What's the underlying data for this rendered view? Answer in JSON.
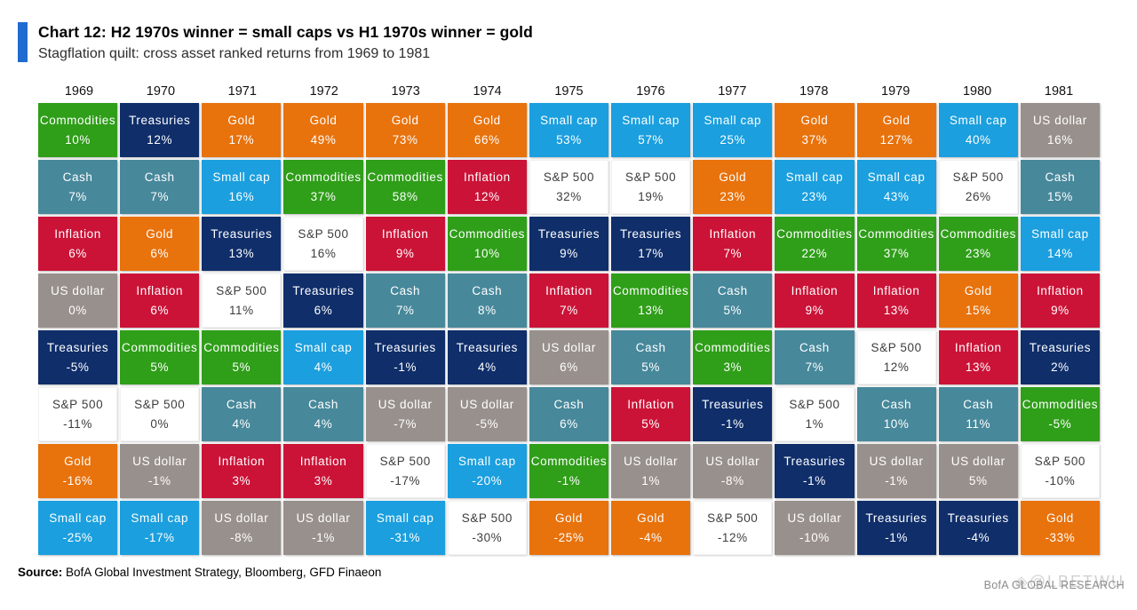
{
  "header": {
    "title": "Chart 12: H2 1970s winner = small caps vs H1 1970s winner = gold",
    "subtitle": "Stagflation quilt: cross asset ranked returns from 1969 to 1981",
    "accent_color": "#1f6bd0"
  },
  "source": {
    "label": "Source:",
    "text": " BofA Global Investment Strategy, Bloomberg, GFD Finaeon"
  },
  "watermark": {
    "brand": "BofA GLOBAL RESEARCH",
    "overlay": "◈@LBETWU"
  },
  "asset_colors": {
    "Commodities": {
      "bg": "#2f9e19",
      "fg": "#ffffff"
    },
    "Treasuries": {
      "bg": "#0f2e6a",
      "fg": "#ffffff"
    },
    "Gold": {
      "bg": "#e8720c",
      "fg": "#ffffff"
    },
    "Small cap": {
      "bg": "#1b9fde",
      "fg": "#ffffff"
    },
    "Cash": {
      "bg": "#47889b",
      "fg": "#ffffff"
    },
    "Inflation": {
      "bg": "#cb1337",
      "fg": "#ffffff"
    },
    "US dollar": {
      "bg": "#98908c",
      "fg": "#ffffff"
    },
    "S&P 500": {
      "bg": "#ffffff",
      "fg": "#3d3d3d"
    }
  },
  "chart_data": {
    "type": "table",
    "subtype": "ranked-return-quilt",
    "title": "Chart 12: H2 1970s winner = small caps vs H1 1970s winner = gold",
    "subtitle": "Stagflation quilt: cross asset ranked returns from 1969 to 1981",
    "rank_rows": 8,
    "years": [
      "1969",
      "1970",
      "1971",
      "1972",
      "1973",
      "1974",
      "1975",
      "1976",
      "1977",
      "1978",
      "1979",
      "1980",
      "1981"
    ],
    "columns": [
      {
        "year": "1969",
        "cells": [
          {
            "asset": "Commodities",
            "value": "10%"
          },
          {
            "asset": "Cash",
            "value": "7%"
          },
          {
            "asset": "Inflation",
            "value": "6%"
          },
          {
            "asset": "US dollar",
            "value": "0%"
          },
          {
            "asset": "Treasuries",
            "value": "-5%"
          },
          {
            "asset": "S&P 500",
            "value": "-11%"
          },
          {
            "asset": "Gold",
            "value": "-16%"
          },
          {
            "asset": "Small cap",
            "value": "-25%"
          }
        ]
      },
      {
        "year": "1970",
        "cells": [
          {
            "asset": "Treasuries",
            "value": "12%"
          },
          {
            "asset": "Cash",
            "value": "7%"
          },
          {
            "asset": "Gold",
            "value": "6%"
          },
          {
            "asset": "Inflation",
            "value": "6%"
          },
          {
            "asset": "Commodities",
            "value": "5%"
          },
          {
            "asset": "S&P 500",
            "value": "0%"
          },
          {
            "asset": "US dollar",
            "value": "-1%"
          },
          {
            "asset": "Small cap",
            "value": "-17%"
          }
        ]
      },
      {
        "year": "1971",
        "cells": [
          {
            "asset": "Gold",
            "value": "17%"
          },
          {
            "asset": "Small cap",
            "value": "16%"
          },
          {
            "asset": "Treasuries",
            "value": "13%"
          },
          {
            "asset": "S&P 500",
            "value": "11%"
          },
          {
            "asset": "Commodities",
            "value": "5%"
          },
          {
            "asset": "Cash",
            "value": "4%"
          },
          {
            "asset": "Inflation",
            "value": "3%"
          },
          {
            "asset": "US dollar",
            "value": "-8%"
          }
        ]
      },
      {
        "year": "1972",
        "cells": [
          {
            "asset": "Gold",
            "value": "49%"
          },
          {
            "asset": "Commodities",
            "value": "37%"
          },
          {
            "asset": "S&P 500",
            "value": "16%"
          },
          {
            "asset": "Treasuries",
            "value": "6%"
          },
          {
            "asset": "Small cap",
            "value": "4%"
          },
          {
            "asset": "Cash",
            "value": "4%"
          },
          {
            "asset": "Inflation",
            "value": "3%"
          },
          {
            "asset": "US dollar",
            "value": "-1%"
          }
        ]
      },
      {
        "year": "1973",
        "cells": [
          {
            "asset": "Gold",
            "value": "73%"
          },
          {
            "asset": "Commodities",
            "value": "58%"
          },
          {
            "asset": "Inflation",
            "value": "9%"
          },
          {
            "asset": "Cash",
            "value": "7%"
          },
          {
            "asset": "Treasuries",
            "value": "-1%"
          },
          {
            "asset": "US dollar",
            "value": "-7%"
          },
          {
            "asset": "S&P 500",
            "value": "-17%"
          },
          {
            "asset": "Small cap",
            "value": "-31%"
          }
        ]
      },
      {
        "year": "1974",
        "cells": [
          {
            "asset": "Gold",
            "value": "66%"
          },
          {
            "asset": "Inflation",
            "value": "12%"
          },
          {
            "asset": "Commodities",
            "value": "10%"
          },
          {
            "asset": "Cash",
            "value": "8%"
          },
          {
            "asset": "Treasuries",
            "value": "4%"
          },
          {
            "asset": "US dollar",
            "value": "-5%"
          },
          {
            "asset": "Small cap",
            "value": "-20%"
          },
          {
            "asset": "S&P 500",
            "value": "-30%"
          }
        ]
      },
      {
        "year": "1975",
        "cells": [
          {
            "asset": "Small cap",
            "value": "53%"
          },
          {
            "asset": "S&P 500",
            "value": "32%"
          },
          {
            "asset": "Treasuries",
            "value": "9%"
          },
          {
            "asset": "Inflation",
            "value": "7%"
          },
          {
            "asset": "US dollar",
            "value": "6%"
          },
          {
            "asset": "Cash",
            "value": "6%"
          },
          {
            "asset": "Commodities",
            "value": "-1%"
          },
          {
            "asset": "Gold",
            "value": "-25%"
          }
        ]
      },
      {
        "year": "1976",
        "cells": [
          {
            "asset": "Small cap",
            "value": "57%"
          },
          {
            "asset": "S&P 500",
            "value": "19%"
          },
          {
            "asset": "Treasuries",
            "value": "17%"
          },
          {
            "asset": "Commodities",
            "value": "13%"
          },
          {
            "asset": "Cash",
            "value": "5%"
          },
          {
            "asset": "Inflation",
            "value": "5%"
          },
          {
            "asset": "US dollar",
            "value": "1%"
          },
          {
            "asset": "Gold",
            "value": "-4%"
          }
        ]
      },
      {
        "year": "1977",
        "cells": [
          {
            "asset": "Small cap",
            "value": "25%"
          },
          {
            "asset": "Gold",
            "value": "23%"
          },
          {
            "asset": "Inflation",
            "value": "7%"
          },
          {
            "asset": "Cash",
            "value": "5%"
          },
          {
            "asset": "Commodities",
            "value": "3%"
          },
          {
            "asset": "Treasuries",
            "value": "-1%"
          },
          {
            "asset": "US dollar",
            "value": "-8%"
          },
          {
            "asset": "S&P 500",
            "value": "-12%"
          }
        ]
      },
      {
        "year": "1978",
        "cells": [
          {
            "asset": "Gold",
            "value": "37%"
          },
          {
            "asset": "Small cap",
            "value": "23%"
          },
          {
            "asset": "Commodities",
            "value": "22%"
          },
          {
            "asset": "Inflation",
            "value": "9%"
          },
          {
            "asset": "Cash",
            "value": "7%"
          },
          {
            "asset": "S&P 500",
            "value": "1%"
          },
          {
            "asset": "Treasuries",
            "value": "-1%"
          },
          {
            "asset": "US dollar",
            "value": "-10%"
          }
        ]
      },
      {
        "year": "1979",
        "cells": [
          {
            "asset": "Gold",
            "value": "127%"
          },
          {
            "asset": "Small cap",
            "value": "43%"
          },
          {
            "asset": "Commodities",
            "value": "37%"
          },
          {
            "asset": "Inflation",
            "value": "13%"
          },
          {
            "asset": "S&P 500",
            "value": "12%"
          },
          {
            "asset": "Cash",
            "value": "10%"
          },
          {
            "asset": "US dollar",
            "value": "-1%"
          },
          {
            "asset": "Treasuries",
            "value": "-1%"
          }
        ]
      },
      {
        "year": "1980",
        "cells": [
          {
            "asset": "Small cap",
            "value": "40%"
          },
          {
            "asset": "S&P 500",
            "value": "26%"
          },
          {
            "asset": "Commodities",
            "value": "23%"
          },
          {
            "asset": "Gold",
            "value": "15%"
          },
          {
            "asset": "Inflation",
            "value": "13%"
          },
          {
            "asset": "Cash",
            "value": "11%"
          },
          {
            "asset": "US dollar",
            "value": "5%"
          },
          {
            "asset": "Treasuries",
            "value": "-4%"
          }
        ]
      },
      {
        "year": "1981",
        "cells": [
          {
            "asset": "US dollar",
            "value": "16%"
          },
          {
            "asset": "Cash",
            "value": "15%"
          },
          {
            "asset": "Small cap",
            "value": "14%"
          },
          {
            "asset": "Inflation",
            "value": "9%"
          },
          {
            "asset": "Treasuries",
            "value": "2%"
          },
          {
            "asset": "Commodities",
            "value": "-5%"
          },
          {
            "asset": "S&P 500",
            "value": "-10%"
          },
          {
            "asset": "Gold",
            "value": "-33%"
          }
        ]
      }
    ]
  }
}
